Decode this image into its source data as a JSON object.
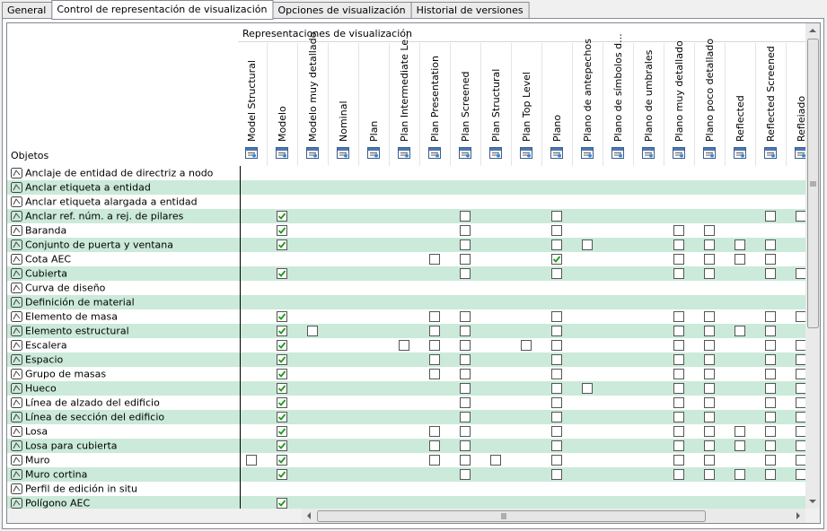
{
  "tabs": [
    "General",
    "Control de representación de visualización",
    "Opciones de visualización",
    "Historial de versiones"
  ],
  "active_tab": 1,
  "table": {
    "group_header": "Representaciones de visualización",
    "row_header": "Objetos",
    "columns": [
      "Model Structural",
      "Modelo",
      "Modelo muy detallado",
      "Nominal",
      "Plan",
      "Plan Intermediate Le...",
      "Plan Presentation",
      "Plan Screened",
      "Plan Structural",
      "Plan Top Level",
      "Plano",
      "Plano de antepechos",
      "Plano de símbolos d...",
      "Plano de umbrales",
      "Plano muy detallado",
      "Plano poco detallado",
      "Reflected",
      "Reflected Screened",
      "Refleiado"
    ],
    "rows": [
      {
        "label": "Anclaje de entidad de directriz a nodo",
        "cells": [
          null,
          null,
          null,
          null,
          null,
          null,
          null,
          null,
          null,
          null,
          null,
          null,
          null,
          null,
          null,
          null,
          null,
          null,
          null
        ]
      },
      {
        "label": "Anclar etiqueta a entidad",
        "cells": [
          null,
          null,
          null,
          null,
          null,
          null,
          null,
          null,
          null,
          null,
          null,
          null,
          null,
          null,
          null,
          null,
          null,
          null,
          null
        ]
      },
      {
        "label": "Anclar etiqueta alargada a entidad",
        "cells": [
          null,
          null,
          null,
          null,
          null,
          null,
          null,
          null,
          null,
          null,
          null,
          null,
          null,
          null,
          null,
          null,
          null,
          null,
          null
        ]
      },
      {
        "label": "Anclar ref. núm. a rej. de pilares",
        "cells": [
          null,
          true,
          null,
          null,
          null,
          null,
          null,
          false,
          null,
          null,
          false,
          null,
          null,
          null,
          null,
          null,
          null,
          false,
          false
        ]
      },
      {
        "label": "Baranda",
        "cells": [
          null,
          true,
          null,
          null,
          null,
          null,
          null,
          false,
          null,
          null,
          false,
          null,
          null,
          null,
          false,
          false,
          null,
          null,
          null
        ]
      },
      {
        "label": "Conjunto de puerta y ventana",
        "cells": [
          null,
          true,
          null,
          null,
          null,
          null,
          null,
          false,
          null,
          null,
          false,
          false,
          null,
          null,
          false,
          false,
          false,
          false,
          null
        ]
      },
      {
        "label": "Cota AEC",
        "cells": [
          null,
          null,
          null,
          null,
          null,
          null,
          false,
          false,
          null,
          null,
          true,
          null,
          null,
          null,
          false,
          false,
          false,
          false,
          null
        ]
      },
      {
        "label": "Cubierta",
        "cells": [
          null,
          true,
          null,
          null,
          null,
          null,
          null,
          false,
          null,
          null,
          false,
          null,
          null,
          null,
          false,
          false,
          null,
          false,
          false
        ]
      },
      {
        "label": "Curva de diseño",
        "cells": [
          null,
          null,
          null,
          null,
          null,
          null,
          null,
          null,
          null,
          null,
          null,
          null,
          null,
          null,
          null,
          null,
          null,
          null,
          null
        ]
      },
      {
        "label": "Definición de material",
        "cells": [
          null,
          null,
          null,
          null,
          null,
          null,
          null,
          null,
          null,
          null,
          null,
          null,
          null,
          null,
          null,
          null,
          null,
          null,
          null
        ]
      },
      {
        "label": "Elemento de masa",
        "cells": [
          null,
          true,
          null,
          null,
          null,
          null,
          false,
          false,
          null,
          null,
          false,
          null,
          null,
          null,
          false,
          false,
          null,
          false,
          false
        ]
      },
      {
        "label": "Elemento estructural",
        "cells": [
          null,
          true,
          false,
          null,
          null,
          null,
          false,
          false,
          null,
          null,
          false,
          null,
          null,
          null,
          false,
          false,
          false,
          false,
          null
        ]
      },
      {
        "label": "Escalera",
        "cells": [
          null,
          true,
          null,
          null,
          null,
          false,
          false,
          false,
          null,
          false,
          false,
          null,
          null,
          null,
          false,
          false,
          null,
          false,
          false
        ]
      },
      {
        "label": "Espacio",
        "cells": [
          null,
          true,
          null,
          null,
          null,
          null,
          false,
          false,
          null,
          null,
          false,
          null,
          null,
          null,
          false,
          false,
          null,
          false,
          false
        ]
      },
      {
        "label": "Grupo de masas",
        "cells": [
          null,
          true,
          null,
          null,
          null,
          null,
          false,
          false,
          null,
          null,
          false,
          null,
          null,
          null,
          false,
          false,
          null,
          false,
          false
        ]
      },
      {
        "label": "Hueco",
        "cells": [
          null,
          true,
          null,
          null,
          null,
          null,
          null,
          false,
          null,
          null,
          false,
          false,
          null,
          null,
          false,
          false,
          null,
          false,
          false
        ]
      },
      {
        "label": "Línea de alzado del edificio",
        "cells": [
          null,
          true,
          null,
          null,
          null,
          null,
          null,
          false,
          null,
          null,
          false,
          null,
          null,
          null,
          false,
          false,
          null,
          false,
          false
        ]
      },
      {
        "label": "Línea de sección del edificio",
        "cells": [
          null,
          true,
          null,
          null,
          null,
          null,
          null,
          false,
          null,
          null,
          false,
          null,
          null,
          null,
          false,
          false,
          null,
          false,
          false
        ]
      },
      {
        "label": "Losa",
        "cells": [
          null,
          true,
          null,
          null,
          null,
          null,
          false,
          false,
          null,
          null,
          false,
          null,
          null,
          null,
          false,
          false,
          false,
          false,
          false
        ]
      },
      {
        "label": "Losa para cubierta",
        "cells": [
          null,
          true,
          null,
          null,
          null,
          null,
          false,
          false,
          null,
          null,
          false,
          null,
          null,
          null,
          false,
          false,
          false,
          false,
          false
        ]
      },
      {
        "label": "Muro",
        "cells": [
          false,
          true,
          null,
          null,
          null,
          null,
          false,
          false,
          false,
          null,
          false,
          null,
          null,
          null,
          false,
          false,
          null,
          false,
          false
        ]
      },
      {
        "label": "Muro cortina",
        "cells": [
          null,
          true,
          null,
          null,
          null,
          null,
          null,
          false,
          null,
          null,
          false,
          null,
          null,
          null,
          false,
          false,
          false,
          false,
          false
        ]
      },
      {
        "label": "Perfil de edición in situ",
        "cells": [
          null,
          null,
          null,
          null,
          null,
          null,
          null,
          null,
          null,
          null,
          null,
          null,
          null,
          null,
          null,
          null,
          null,
          null,
          null
        ]
      },
      {
        "label": "Polígono AEC",
        "cells": [
          null,
          true,
          null,
          null,
          null,
          null,
          null,
          null,
          null,
          null,
          null,
          null,
          null,
          null,
          null,
          null,
          null,
          null,
          null
        ]
      }
    ]
  }
}
